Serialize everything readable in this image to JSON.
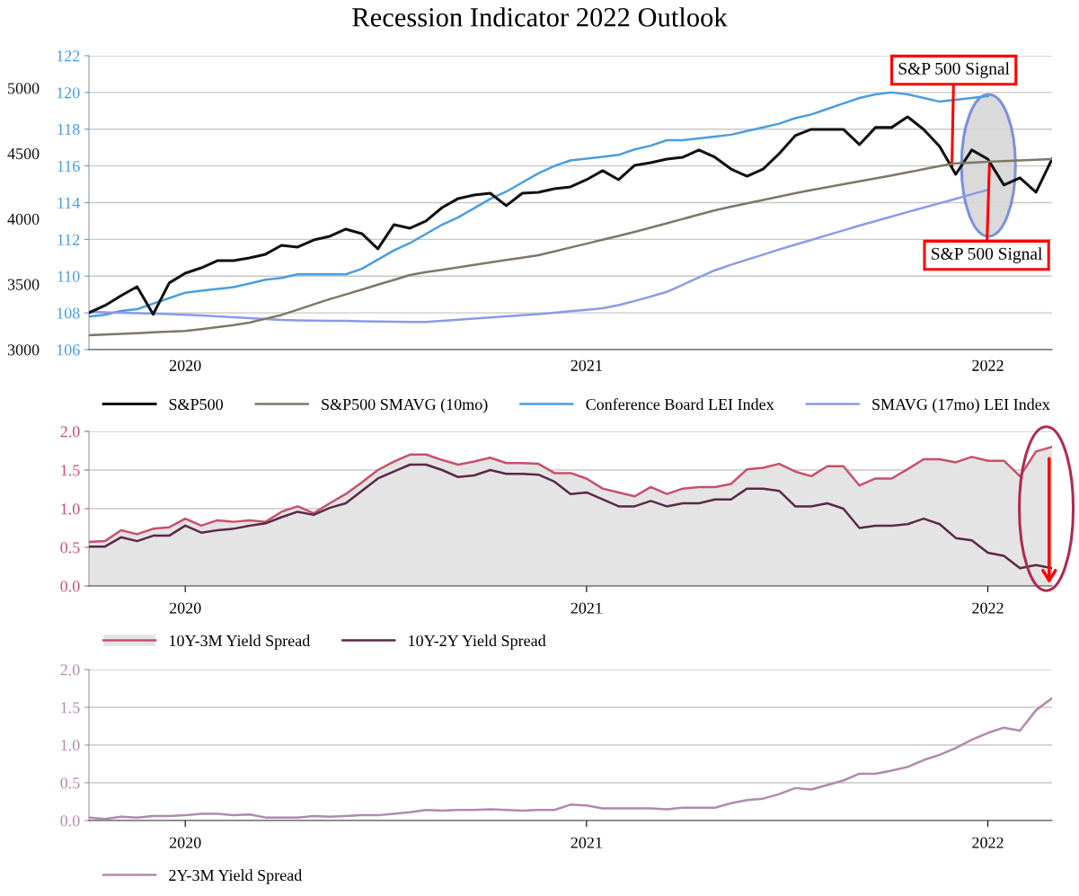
{
  "chart_data": [
    {
      "type": "line",
      "title": "Recession Indicator 2022 Outlook",
      "categories": [
        null,
        null,
        null,
        null,
        null,
        null,
        "2020",
        null,
        null,
        null,
        null,
        null,
        null,
        null,
        null,
        null,
        null,
        null,
        null,
        null,
        null,
        null,
        null,
        null,
        null,
        null,
        null,
        null,
        null,
        null,
        null,
        "2021",
        null,
        null,
        null,
        null,
        null,
        null,
        null,
        null,
        null,
        null,
        null,
        null,
        null,
        null,
        null,
        null,
        null,
        null,
        null,
        null,
        null,
        null,
        null,
        null,
        "2022",
        null,
        null,
        null,
        null
      ],
      "ylim": [
        106,
        122
      ],
      "yticks": [
        106,
        108,
        110,
        112,
        114,
        116,
        118,
        120,
        122
      ],
      "y2lim": [
        3000,
        5247
      ],
      "y2ticks": [
        3000,
        3500,
        4000,
        4500,
        5000
      ],
      "grid": "y",
      "legend": "bottom",
      "series": [
        {
          "name": "S&P500",
          "color": "#111111",
          "axis": "y2",
          "values": [
            3282,
            3337,
            3412,
            3481,
            3270,
            3509,
            3584,
            3625,
            3680,
            3680,
            3701,
            3729,
            3797,
            3784,
            3838,
            3866,
            3921,
            3887,
            3770,
            3955,
            3928,
            3983,
            4086,
            4155,
            4182,
            4196,
            4100,
            4196,
            4203,
            4230,
            4244,
            4299,
            4368,
            4299,
            4409,
            4430,
            4457,
            4471,
            4526,
            4471,
            4381,
            4326,
            4381,
            4498,
            4636,
            4684,
            4684,
            4684,
            4567,
            4698,
            4698,
            4780,
            4684,
            4553,
            4340,
            4526,
            4457,
            4258,
            4313,
            4203,
            4457
          ]
        },
        {
          "name": "S&P500 SMAVG (10mo)",
          "color": "#7f7766",
          "axis": "y2",
          "values": [
            3110,
            3115,
            3121,
            3126,
            3132,
            3137,
            3143,
            3156,
            3171,
            3187,
            3206,
            3236,
            3265,
            3305,
            3346,
            3386,
            3422,
            3459,
            3496,
            3533,
            3570,
            3592,
            3610,
            3629,
            3648,
            3666,
            3685,
            3703,
            3722,
            3751,
            3781,
            3810,
            3840,
            3869,
            3900,
            3933,
            3966,
            3999,
            4032,
            4065,
            4093,
            4118,
            4144,
            4170,
            4195,
            4220,
            4242,
            4265,
            4287,
            4309,
            4331,
            4355,
            4379,
            4404,
            4424,
            4430,
            4436,
            4441,
            4447,
            4452,
            4457
          ]
        },
        {
          "name": "Conference Board LEI Index",
          "color": "#4a9de0",
          "values": [
            107.8,
            107.9,
            108.1,
            108.2,
            108.5,
            108.8,
            109.1,
            109.2,
            109.3,
            109.4,
            109.6,
            109.8,
            109.9,
            110.1,
            110.1,
            110.1,
            110.1,
            110.4,
            110.9,
            111.4,
            111.8,
            112.3,
            112.8,
            113.2,
            113.7,
            114.2,
            114.6,
            115.1,
            115.6,
            116.0,
            116.3,
            116.4,
            116.5,
            116.6,
            116.9,
            117.1,
            117.4,
            117.4,
            117.5,
            117.6,
            117.7,
            117.9,
            118.1,
            118.3,
            118.6,
            118.8,
            119.1,
            119.4,
            119.7,
            119.9,
            120.0,
            119.9,
            119.7,
            119.5,
            119.6,
            119.7,
            119.8,
            null,
            null,
            null,
            null
          ]
        },
        {
          "name": "SMAVG (17mo) LEI Index",
          "color": "#8a9be8",
          "values": [
            108.05,
            108.03,
            108.0,
            107.98,
            107.96,
            107.93,
            107.9,
            107.86,
            107.81,
            107.76,
            107.71,
            107.66,
            107.61,
            107.59,
            107.58,
            107.57,
            107.56,
            107.54,
            107.53,
            107.52,
            107.51,
            107.51,
            107.57,
            107.63,
            107.69,
            107.75,
            107.81,
            107.87,
            107.93,
            108.01,
            108.09,
            108.17,
            108.25,
            108.42,
            108.65,
            108.89,
            109.14,
            109.53,
            109.93,
            110.32,
            110.62,
            110.9,
            111.17,
            111.45,
            111.71,
            111.97,
            112.23,
            112.49,
            112.75,
            113.0,
            113.24,
            113.49,
            113.73,
            113.97,
            114.21,
            114.46,
            114.7,
            null,
            null,
            null,
            null
          ]
        }
      ],
      "annotations": [
        {
          "text": "S&P 500 Signal",
          "y": 116.0
        },
        {
          "text": "S&P 500 Signal",
          "y": 116.1
        }
      ]
    },
    {
      "type": "line",
      "categories": [
        null,
        null,
        null,
        null,
        null,
        null,
        "2020",
        null,
        null,
        null,
        null,
        null,
        null,
        null,
        null,
        null,
        null,
        null,
        null,
        null,
        null,
        null,
        null,
        null,
        null,
        null,
        null,
        null,
        null,
        null,
        null,
        "2021",
        null,
        null,
        null,
        null,
        null,
        null,
        null,
        null,
        null,
        null,
        null,
        null,
        null,
        null,
        null,
        null,
        null,
        null,
        null,
        null,
        null,
        null,
        null,
        null,
        "2022",
        null,
        null,
        null,
        null
      ],
      "ylim": [
        0,
        2
      ],
      "yticks": [
        {
          "value": 0,
          "label": "0.0"
        },
        {
          "value": 0.5,
          "label": "0.5"
        },
        {
          "value": 1,
          "label": "1.0"
        },
        {
          "value": 1.5,
          "label": "1.5"
        },
        {
          "value": 2,
          "label": "2.0"
        }
      ],
      "grid": "y",
      "legend": "bottom",
      "series": [
        {
          "name": "10Y-3M Yield Spread",
          "type": "area",
          "color": "#c8506a",
          "values": [
            0.57,
            0.58,
            0.72,
            0.67,
            0.74,
            0.76,
            0.87,
            0.78,
            0.85,
            0.83,
            0.85,
            0.83,
            0.96,
            1.03,
            0.94,
            1.07,
            1.19,
            1.34,
            1.5,
            1.61,
            1.7,
            1.7,
            1.63,
            1.57,
            1.61,
            1.66,
            1.59,
            1.59,
            1.58,
            1.46,
            1.46,
            1.39,
            1.26,
            1.21,
            1.16,
            1.28,
            1.19,
            1.26,
            1.28,
            1.28,
            1.32,
            1.51,
            1.53,
            1.58,
            1.48,
            1.42,
            1.55,
            1.55,
            1.3,
            1.39,
            1.39,
            1.51,
            1.64,
            1.64,
            1.6,
            1.67,
            1.62,
            1.62,
            1.42,
            1.74,
            1.8
          ]
        },
        {
          "name": "10Y-2Y Yield Spread",
          "color": "#5a2848",
          "values": [
            0.51,
            0.51,
            0.63,
            0.58,
            0.65,
            0.65,
            0.78,
            0.69,
            0.72,
            0.74,
            0.78,
            0.81,
            0.89,
            0.96,
            0.92,
            1.01,
            1.07,
            1.23,
            1.39,
            1.48,
            1.57,
            1.57,
            1.5,
            1.41,
            1.43,
            1.5,
            1.45,
            1.45,
            1.44,
            1.35,
            1.19,
            1.21,
            1.12,
            1.03,
            1.03,
            1.1,
            1.03,
            1.07,
            1.07,
            1.12,
            1.12,
            1.26,
            1.26,
            1.23,
            1.03,
            1.03,
            1.07,
            1.0,
            0.75,
            0.78,
            0.78,
            0.8,
            0.87,
            0.8,
            0.62,
            0.59,
            0.43,
            0.39,
            0.23,
            0.27,
            0.23
          ]
        }
      ]
    },
    {
      "type": "line",
      "categories": [
        null,
        null,
        null,
        null,
        null,
        null,
        "2020",
        null,
        null,
        null,
        null,
        null,
        null,
        null,
        null,
        null,
        null,
        null,
        null,
        null,
        null,
        null,
        null,
        null,
        null,
        null,
        null,
        null,
        null,
        null,
        null,
        "2021",
        null,
        null,
        null,
        null,
        null,
        null,
        null,
        null,
        null,
        null,
        null,
        null,
        null,
        null,
        null,
        null,
        null,
        null,
        null,
        null,
        null,
        null,
        null,
        null,
        "2022",
        null,
        null,
        null,
        null
      ],
      "ylim": [
        0,
        2
      ],
      "yticks": [
        {
          "value": 0,
          "label": "0.0"
        },
        {
          "value": 0.5,
          "label": "0.5"
        },
        {
          "value": 1,
          "label": "1.0"
        },
        {
          "value": 1.5,
          "label": "1.5"
        },
        {
          "value": 2,
          "label": "2.0"
        }
      ],
      "grid": "y",
      "legend": "bottom",
      "series": [
        {
          "name": "2Y-3M Yield Spread",
          "color": "#b08aae",
          "values": [
            0.04,
            0.02,
            0.05,
            0.04,
            0.06,
            0.06,
            0.07,
            0.09,
            0.09,
            0.07,
            0.08,
            0.04,
            0.04,
            0.04,
            0.06,
            0.05,
            0.06,
            0.07,
            0.07,
            0.09,
            0.11,
            0.14,
            0.13,
            0.14,
            0.14,
            0.15,
            0.14,
            0.13,
            0.14,
            0.14,
            0.21,
            0.2,
            0.16,
            0.16,
            0.16,
            0.16,
            0.15,
            0.17,
            0.17,
            0.17,
            0.23,
            0.27,
            0.29,
            0.35,
            0.43,
            0.41,
            0.47,
            0.53,
            0.62,
            0.62,
            0.66,
            0.71,
            0.8,
            0.87,
            0.96,
            1.07,
            1.16,
            1.23,
            1.19,
            1.46,
            1.62
          ]
        }
      ]
    }
  ]
}
